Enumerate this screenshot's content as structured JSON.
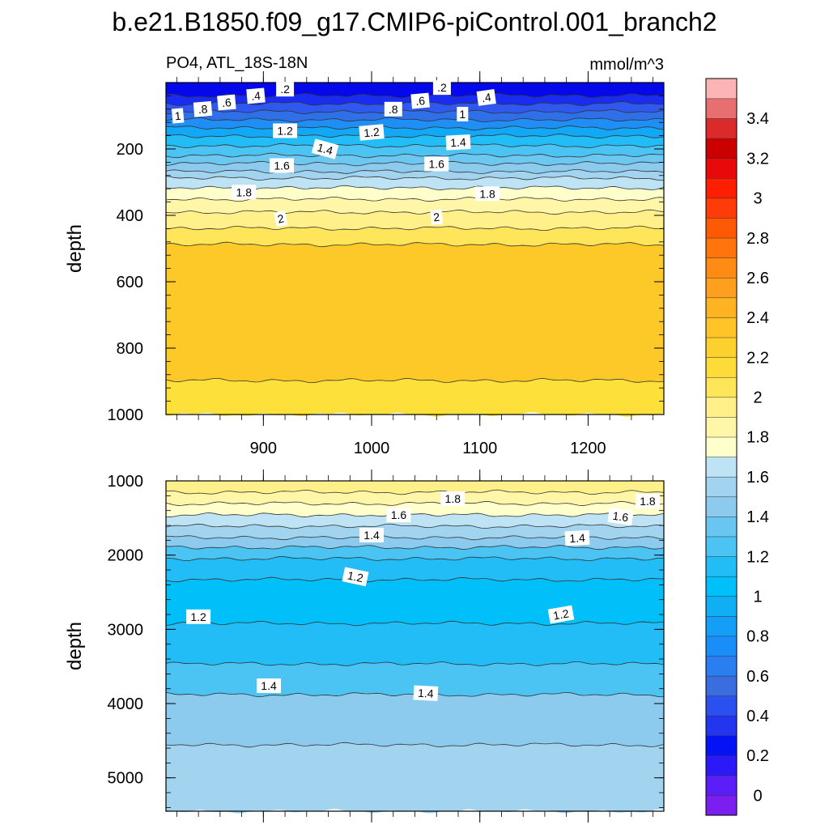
{
  "chart_data": {
    "type": "contour",
    "title": "b.e21.B1850.f09_g17.CMIP6-piControl.001_branch2",
    "subtitle_left": "PO4, ATL_18S-18N",
    "subtitle_right": "mmol/m^3",
    "variable": "PO4",
    "region": "ATL_18S-18N",
    "units": "mmol/m^3",
    "x_range": [
      810,
      1270
    ],
    "x_ticks": [
      "900",
      "1000",
      "1100",
      "1200"
    ],
    "panels": [
      {
        "name": "upper",
        "ylabel": "depth",
        "ylim": [
          0,
          1000
        ],
        "y_ticks": [
          "200",
          "400",
          "600",
          "800",
          "1000"
        ],
        "y_tick_values": [
          200,
          400,
          600,
          800,
          1000
        ],
        "contour_labels": [
          {
            "text": ".2",
            "x": 920,
            "depth": 20,
            "rot": 0
          },
          {
            "text": ".2",
            "x": 1065,
            "depth": 15,
            "rot": 0
          },
          {
            "text": ".4",
            "x": 893,
            "depth": 40,
            "rot": -5
          },
          {
            "text": ".4",
            "x": 1106,
            "depth": 45,
            "rot": -8
          },
          {
            "text": ".6",
            "x": 866,
            "depth": 60,
            "rot": -5
          },
          {
            "text": ".6",
            "x": 1045,
            "depth": 55,
            "rot": -5
          },
          {
            "text": ".8",
            "x": 844,
            "depth": 80,
            "rot": -5
          },
          {
            "text": ".8",
            "x": 1020,
            "depth": 80,
            "rot": 0
          },
          {
            "text": "1",
            "x": 821,
            "depth": 100,
            "rot": -5
          },
          {
            "text": "1",
            "x": 1084,
            "depth": 95,
            "rot": 0
          },
          {
            "text": "1.2",
            "x": 920,
            "depth": 145,
            "rot": 0
          },
          {
            "text": "1.2",
            "x": 1000,
            "depth": 150,
            "rot": -5
          },
          {
            "text": "1.4",
            "x": 957,
            "depth": 200,
            "rot": 15
          },
          {
            "text": "1.4",
            "x": 1080,
            "depth": 180,
            "rot": -3
          },
          {
            "text": "1.6",
            "x": 917,
            "depth": 250,
            "rot": 0
          },
          {
            "text": "1.6",
            "x": 1060,
            "depth": 245,
            "rot": 0
          },
          {
            "text": "1.8",
            "x": 882,
            "depth": 330,
            "rot": 0
          },
          {
            "text": "1.8",
            "x": 1107,
            "depth": 335,
            "rot": 0
          },
          {
            "text": "2",
            "x": 916,
            "depth": 410,
            "rot": -12
          },
          {
            "text": "2",
            "x": 1060,
            "depth": 405,
            "rot": -5
          }
        ]
      },
      {
        "name": "lower",
        "ylabel": "depth",
        "ylim": [
          1000,
          5450
        ],
        "y_ticks": [
          "1000",
          "2000",
          "3000",
          "4000",
          "5000"
        ],
        "y_tick_values": [
          1000,
          2000,
          3000,
          4000,
          5000
        ],
        "contour_labels": [
          {
            "text": "1.8",
            "x": 1075,
            "depth": 1240,
            "rot": 0
          },
          {
            "text": "1.8",
            "x": 1255,
            "depth": 1270,
            "rot": 0
          },
          {
            "text": "1.6",
            "x": 1025,
            "depth": 1460,
            "rot": 0
          },
          {
            "text": "1.6",
            "x": 1230,
            "depth": 1480,
            "rot": 8
          },
          {
            "text": "1.4",
            "x": 1000,
            "depth": 1730,
            "rot": 0
          },
          {
            "text": "1.4",
            "x": 1190,
            "depth": 1770,
            "rot": -3
          },
          {
            "text": "1.2",
            "x": 985,
            "depth": 2290,
            "rot": 12
          },
          {
            "text": "1.2",
            "x": 1175,
            "depth": 2800,
            "rot": -10
          },
          {
            "text": "1.2",
            "x": 840,
            "depth": 2830,
            "rot": 0
          },
          {
            "text": "1.4",
            "x": 905,
            "depth": 3760,
            "rot": 0
          },
          {
            "text": "1.4",
            "x": 1050,
            "depth": 3860,
            "rot": 3
          }
        ]
      }
    ],
    "colorbar": {
      "levels": [
        "0",
        "0.2",
        "0.4",
        "0.6",
        "0.8",
        "1",
        "1.2",
        "1.4",
        "1.6",
        "1.8",
        "2",
        "2.2",
        "2.4",
        "2.6",
        "2.8",
        "3",
        "3.2",
        "3.4"
      ],
      "colors": [
        "#7a1ff0",
        "#5b1ef8",
        "#2b1af7",
        "#0512f5",
        "#2435f0",
        "#2a50f0",
        "#3a6ee0",
        "#2a7ef0",
        "#1a8ef8",
        "#159ef8",
        "#10aef5",
        "#00c0fa",
        "#22bdf6",
        "#4cc4f3",
        "#68c6f0",
        "#8ccbee",
        "#a2d4f0",
        "#bde3f5",
        "#ffffcc",
        "#fff6a8",
        "#fff08a",
        "#fee55a",
        "#fddc3a",
        "#fcd12d",
        "#fec428",
        "#feb323",
        "#fea01d",
        "#fe8c14",
        "#ff750c",
        "#fe5a05",
        "#ff3c07",
        "#fe1f02",
        "#e80a0a",
        "#cc0000",
        "#da2a2a",
        "#e86f6f",
        "#fcb4b4"
      ]
    }
  }
}
